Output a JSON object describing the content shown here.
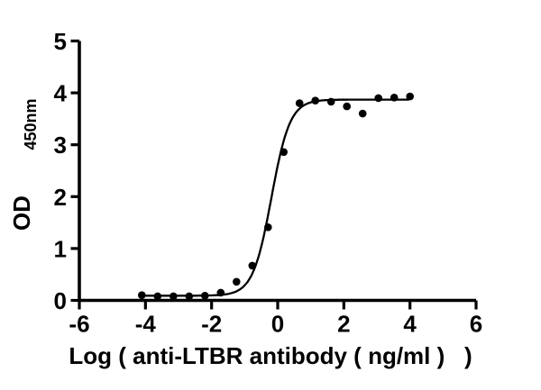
{
  "figure": {
    "background": "#ffffff"
  },
  "chart_data": {
    "type": "scatter",
    "title": "",
    "xlabel": "Log ( anti-LTBR antibody ( ng/ml )   )",
    "ylabel_main": "OD",
    "ylabel_subscript": "450nm",
    "xlim": [
      -6,
      6
    ],
    "ylim": [
      0,
      5
    ],
    "xticks": [
      -6,
      -4,
      -2,
      0,
      2,
      4,
      6
    ],
    "yticks": [
      0,
      1,
      2,
      3,
      4,
      5
    ],
    "grid": false,
    "legend": "none",
    "axis_color": "#000000",
    "marker": {
      "shape": "circle",
      "color": "#000000",
      "radius": 4.3
    },
    "curve": {
      "model": "4PL",
      "bottom": 0.09,
      "top": 3.87,
      "log_ec50": -0.19,
      "hill_slope": 1.55,
      "x_start": -4.109,
      "x_end": 4.0,
      "color": "#000000"
    },
    "points": [
      {
        "x": -4.109,
        "y": 0.1
      },
      {
        "x": -3.632,
        "y": 0.08
      },
      {
        "x": -3.155,
        "y": 0.08
      },
      {
        "x": -2.678,
        "y": 0.08
      },
      {
        "x": -2.201,
        "y": 0.09
      },
      {
        "x": -1.724,
        "y": 0.15
      },
      {
        "x": -1.247,
        "y": 0.36
      },
      {
        "x": -0.77,
        "y": 0.67
      },
      {
        "x": -0.293,
        "y": 1.41
      },
      {
        "x": 0.184,
        "y": 2.86
      },
      {
        "x": 0.661,
        "y": 3.8
      },
      {
        "x": 1.138,
        "y": 3.85
      },
      {
        "x": 1.615,
        "y": 3.83
      },
      {
        "x": 2.092,
        "y": 3.74
      },
      {
        "x": 2.569,
        "y": 3.6
      },
      {
        "x": 3.046,
        "y": 3.9
      },
      {
        "x": 3.523,
        "y": 3.91
      },
      {
        "x": 4.0,
        "y": 3.93
      }
    ]
  }
}
